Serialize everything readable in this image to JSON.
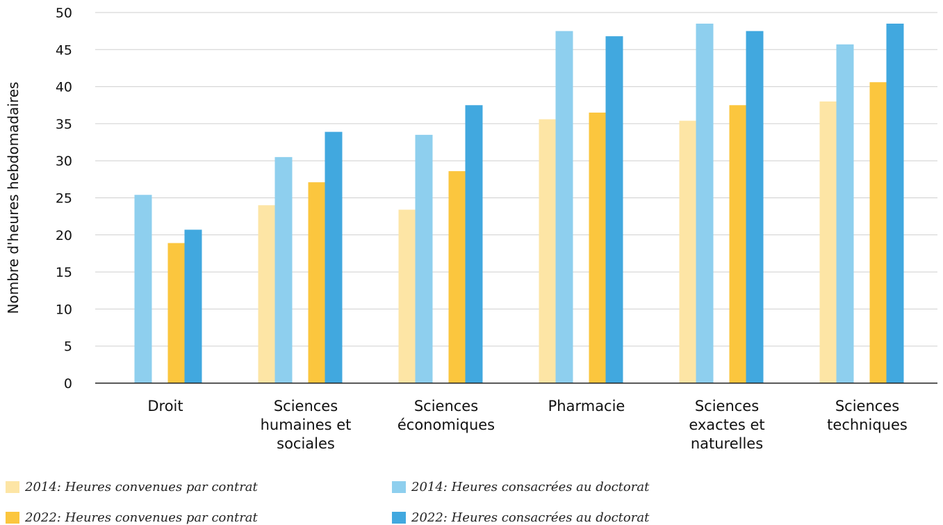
{
  "chart_data": {
    "type": "bar",
    "ylabel": "Nombre d'heures hebdomadaires",
    "xlabel": "",
    "ylim": [
      0,
      50
    ],
    "yticks": [
      0,
      5,
      10,
      15,
      20,
      25,
      30,
      35,
      40,
      45,
      50
    ],
    "grid": true,
    "legend_position": "bottom",
    "categories": [
      [
        "Droit"
      ],
      [
        "Sciences",
        "humaines et",
        "sociales"
      ],
      [
        "Sciences",
        "économiques"
      ],
      [
        "Pharmacie"
      ],
      [
        "Sciences",
        "exactes et",
        "naturelles"
      ],
      [
        "Sciences",
        "techniques"
      ]
    ],
    "series": [
      {
        "name": "2014: Heures convenues par contrat",
        "color": "#FDE5A5",
        "values": [
          null,
          24.0,
          23.4,
          35.6,
          35.4,
          38.0
        ]
      },
      {
        "name": "2014: Heures consacrées au doctorat",
        "color": "#8ECFEE",
        "values": [
          25.4,
          30.5,
          33.5,
          47.5,
          48.5,
          45.7
        ]
      },
      {
        "name": "2022: Heures convenues par contrat",
        "color": "#FBC63E",
        "values": [
          18.9,
          27.1,
          28.6,
          36.5,
          37.5,
          40.6
        ]
      },
      {
        "name": "2022: Heures consacrées au doctorat",
        "color": "#41A8DF",
        "values": [
          20.7,
          33.9,
          37.5,
          46.8,
          47.5,
          48.5
        ]
      }
    ]
  }
}
